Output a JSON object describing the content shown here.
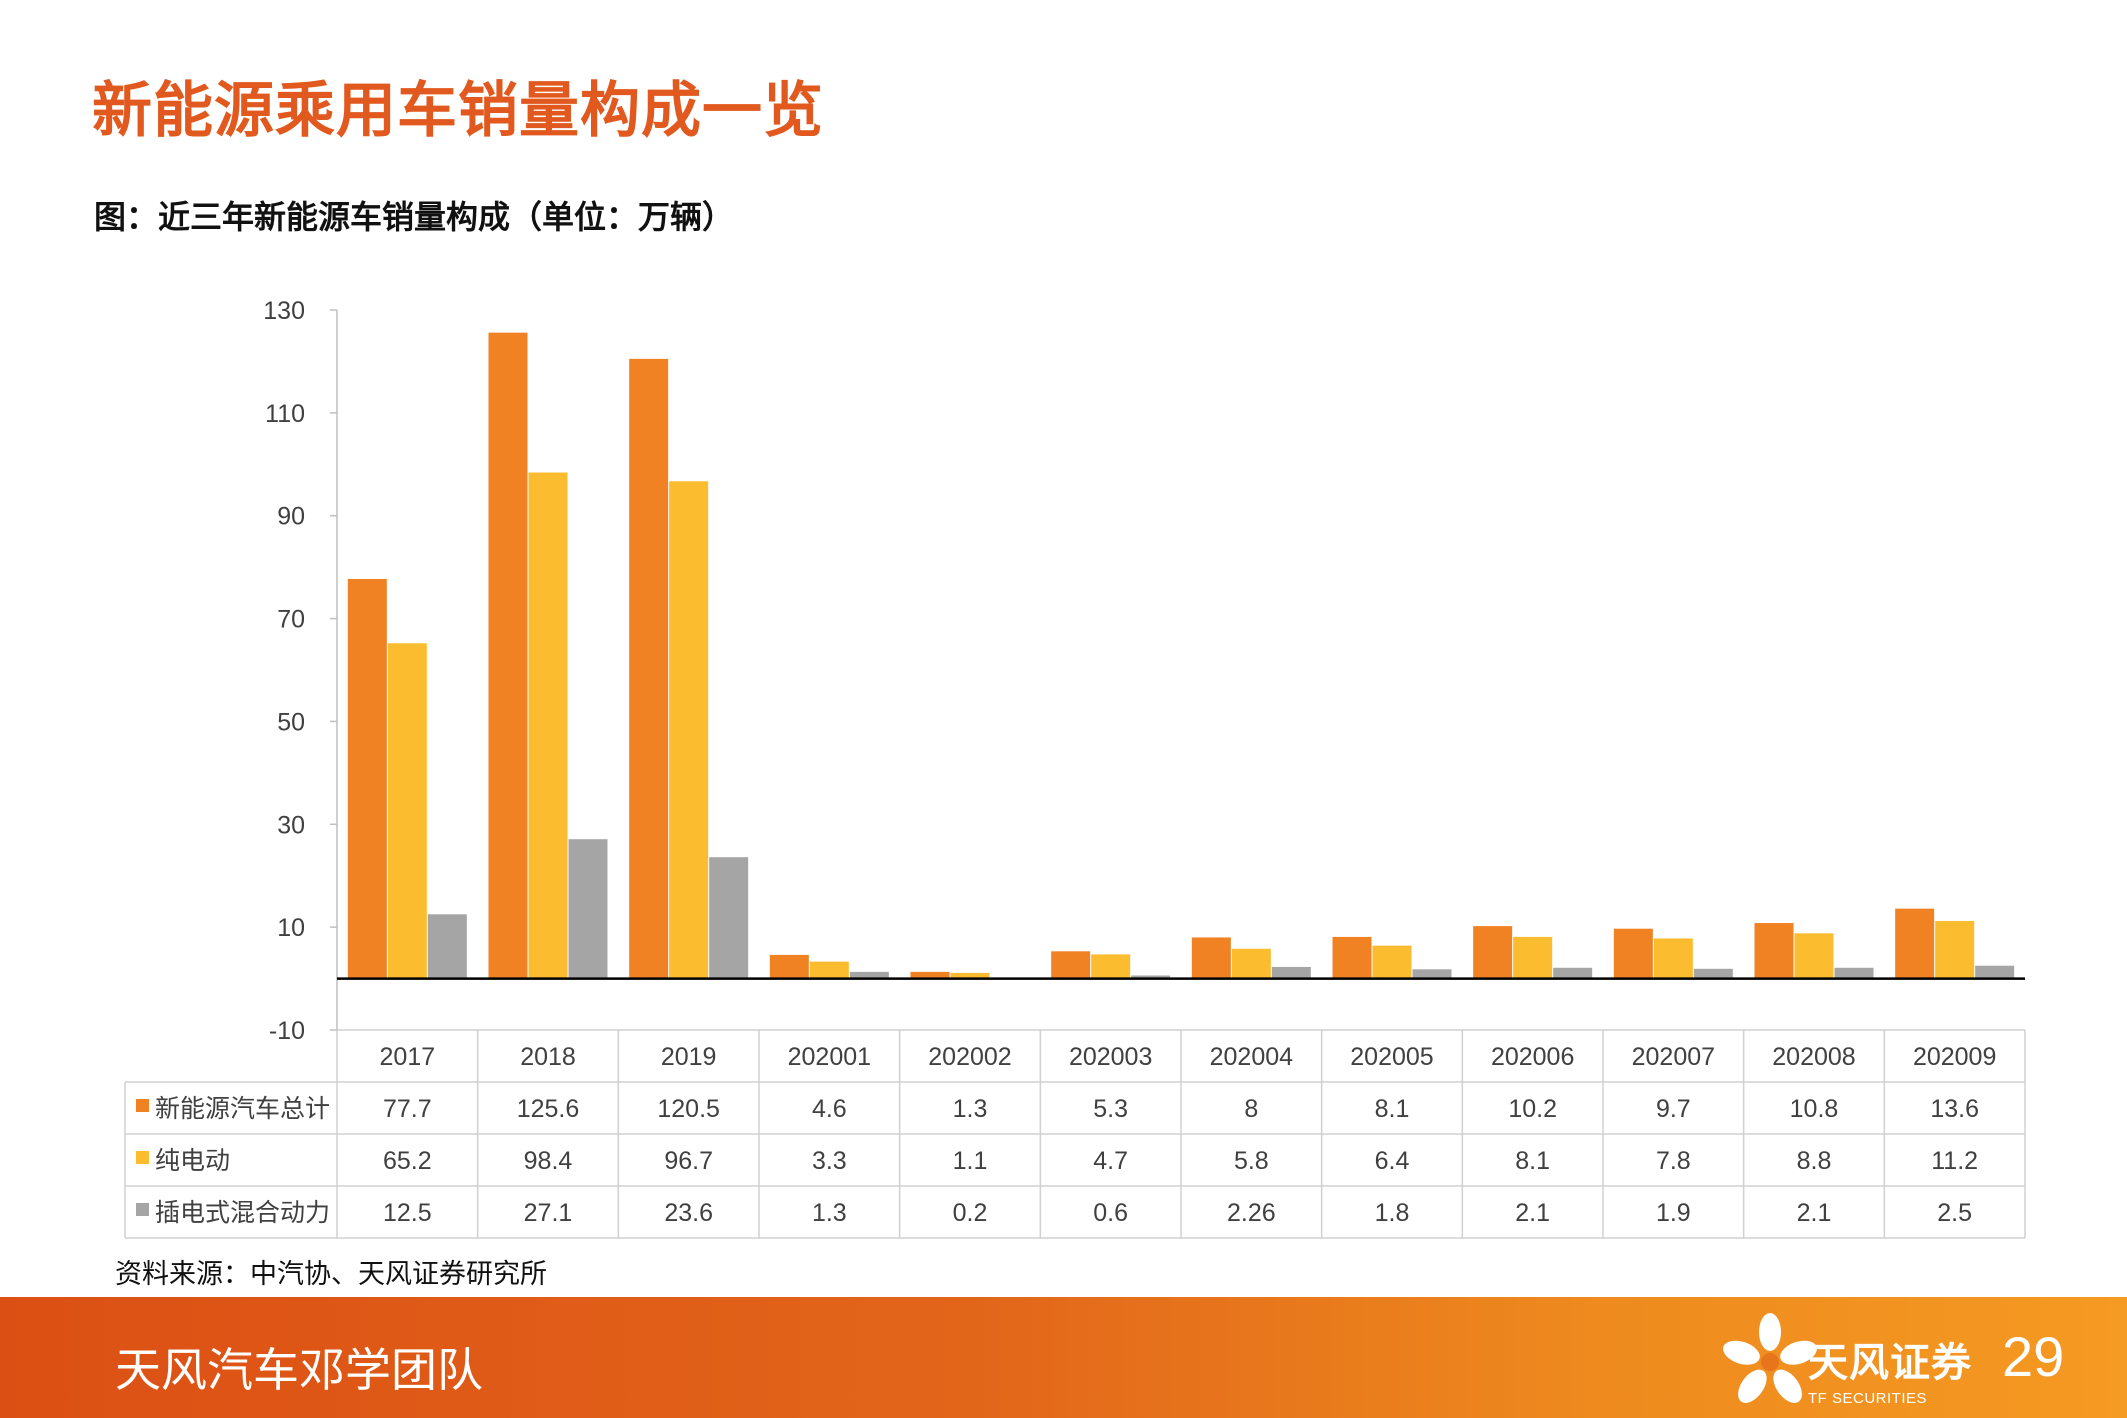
{
  "page_title": "新能源乘用车销量构成一览",
  "chart_caption": "图：近三年新能源车销量构成（单位：万辆）",
  "source_note": "资料来源：中汽协、天风证券研究所",
  "footer": {
    "team": "天风汽车邓学团队",
    "brand_cn": "天风证券",
    "brand_en": "TF SECURITIES",
    "page_number": "29"
  },
  "colors": {
    "accent": "#e1591e",
    "series_total": "#f08224",
    "series_bev": "#fbbd2f",
    "series_phev": "#a5a5a5"
  },
  "chart_data": {
    "type": "bar",
    "ylim": [
      -10,
      130
    ],
    "yticks": [
      130,
      110,
      90,
      70,
      50,
      30,
      10,
      -10
    ],
    "categories": [
      "2017",
      "2018",
      "2019",
      "202001",
      "202002",
      "202003",
      "202004",
      "202005",
      "202006",
      "202007",
      "202008",
      "202009"
    ],
    "series": [
      {
        "name": "新能源汽车总计",
        "color": "#f08224",
        "values": [
          77.7,
          125.6,
          120.5,
          4.6,
          1.3,
          5.3,
          8,
          8.1,
          10.2,
          9.7,
          10.8,
          13.6
        ],
        "labels": [
          "77.7",
          "125.6",
          "120.5",
          "4.6",
          "1.3",
          "5.3",
          "8",
          "8.1",
          "10.2",
          "9.7",
          "10.8",
          "13.6"
        ]
      },
      {
        "name": "纯电动",
        "color": "#fbbd2f",
        "values": [
          65.2,
          98.4,
          96.7,
          3.3,
          1.1,
          4.7,
          5.8,
          6.4,
          8.1,
          7.8,
          8.8,
          11.2
        ],
        "labels": [
          "65.2",
          "98.4",
          "96.7",
          "3.3",
          "1.1",
          "4.7",
          "5.8",
          "6.4",
          "8.1",
          "7.8",
          "8.8",
          "11.2"
        ]
      },
      {
        "name": "插电式混合动力",
        "color": "#a5a5a5",
        "values": [
          12.5,
          27.1,
          23.6,
          1.3,
          0.2,
          0.6,
          2.26,
          1.8,
          2.1,
          1.9,
          2.1,
          2.5
        ],
        "labels": [
          "12.5",
          "27.1",
          "23.6",
          "1.3",
          "0.2",
          "0.6",
          "2.26",
          "1.8",
          "2.1",
          "1.9",
          "2.1",
          "2.5"
        ]
      }
    ],
    "legend": "data-table"
  }
}
